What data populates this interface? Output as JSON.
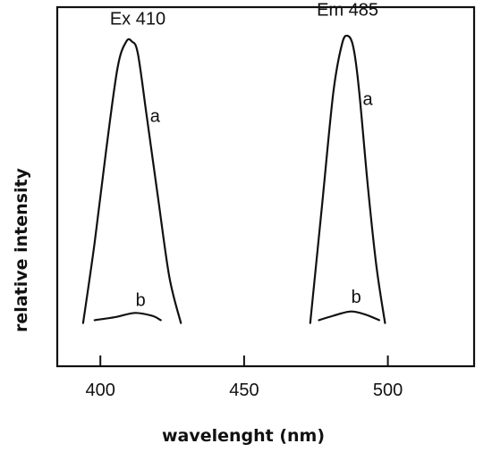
{
  "chart_data": {
    "type": "line",
    "xlabel": "wavelenght (nm)",
    "ylabel": "relative intensity",
    "xlim": [
      385,
      530
    ],
    "ylim": [
      0,
      1.12
    ],
    "xticks": [
      400,
      450,
      500
    ],
    "xtick_labels": [
      "400",
      "450",
      "500"
    ],
    "grid": false,
    "series": [
      {
        "key": "ex_a",
        "x": [
          394,
          398,
          402,
          406,
          409,
          411,
          413,
          416,
          420,
          424,
          428
        ],
        "values": [
          0.02,
          0.3,
          0.62,
          0.91,
          1.0,
          1.0,
          0.96,
          0.75,
          0.46,
          0.18,
          0.02
        ]
      },
      {
        "key": "ex_b",
        "x": [
          398,
          405,
          412,
          418,
          421
        ],
        "values": [
          0.03,
          0.04,
          0.055,
          0.045,
          0.03
        ]
      },
      {
        "key": "em_a",
        "x": [
          473,
          477,
          481,
          484,
          486,
          488,
          490,
          493,
          496,
          499
        ],
        "values": [
          0.02,
          0.42,
          0.82,
          0.99,
          1.02,
          0.98,
          0.83,
          0.5,
          0.22,
          0.02
        ]
      },
      {
        "key": "em_b",
        "x": [
          476,
          481,
          487,
          492,
          497
        ],
        "values": [
          0.03,
          0.045,
          0.06,
          0.05,
          0.03
        ]
      }
    ],
    "annotations": [
      {
        "text": "Ex 410",
        "x": 413,
        "y": 1.06
      },
      {
        "text": "Em 485",
        "x": 486,
        "y": 1.09
      },
      {
        "text": "a",
        "x": 419,
        "y": 0.72
      },
      {
        "text": "b",
        "x": 414,
        "y": 0.08
      },
      {
        "text": "a",
        "x": 493,
        "y": 0.78
      },
      {
        "text": "b",
        "x": 489,
        "y": 0.09
      }
    ]
  }
}
